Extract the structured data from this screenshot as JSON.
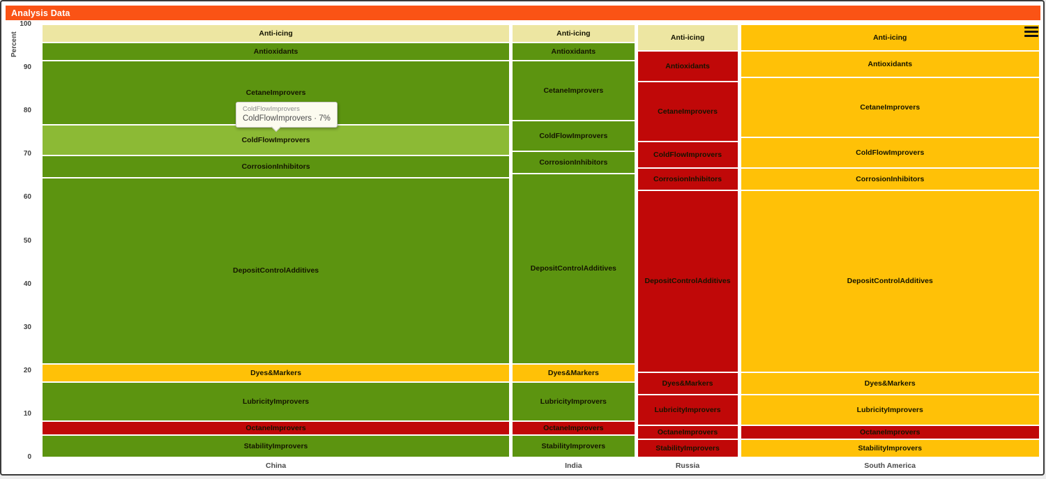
{
  "header": {
    "title": "Analysis Data",
    "background_color": "#FA5315"
  },
  "toolbar": {
    "menu_icon": "hamburger-menu-icon"
  },
  "tooltip": {
    "line1": "ColdFlowImprovers",
    "line2": "ColdFlowImprovers · 7%",
    "hovered_cell": "China / ColdFlowImprovers"
  },
  "chart_data": {
    "type": "mosaic",
    "title": "Analysis Data",
    "xlabel": "",
    "ylabel": "Percent",
    "ylim": [
      0,
      100
    ],
    "y_ticks": [
      0,
      10,
      20,
      30,
      40,
      50,
      60,
      70,
      80,
      90,
      100
    ],
    "grid": false,
    "legend": "none",
    "categories": [
      "China",
      "India",
      "Russia",
      "South America"
    ],
    "column_width_percent": [
      47.2,
      12.4,
      10.2,
      30.2
    ],
    "row_order_top_to_bottom": [
      "Anti-icing",
      "Antioxidants",
      "CetaneImprovers",
      "ColdFlowImprovers",
      "CorrosionInhibitors",
      "DepositControlAdditives",
      "Dyes&Markers",
      "LubricityImprovers",
      "OctaneImprovers",
      "StabilityImprovers"
    ],
    "palette": {
      "khaki": "#EDE6A2",
      "green": "#5C9410",
      "light_green": "#8CBA35",
      "amber": "#FFC107",
      "red": "#C00808"
    },
    "columns": [
      {
        "name": "China",
        "width_percent": 47.2,
        "segments": [
          {
            "label": "Anti-icing",
            "value": 4,
            "color": "khaki"
          },
          {
            "label": "Antioxidants",
            "value": 4,
            "color": "green"
          },
          {
            "label": "CetaneImprovers",
            "value": 15,
            "color": "green"
          },
          {
            "label": "ColdFlowImprovers",
            "value": 7,
            "color": "light_green",
            "highlighted": true
          },
          {
            "label": "CorrosionInhibitors",
            "value": 5,
            "color": "green"
          },
          {
            "label": "DepositControlAdditives",
            "value": 44,
            "color": "green"
          },
          {
            "label": "Dyes&Markers",
            "value": 4,
            "color": "amber"
          },
          {
            "label": "LubricityImprovers",
            "value": 9,
            "color": "green"
          },
          {
            "label": "OctaneImprovers",
            "value": 3,
            "color": "red"
          },
          {
            "label": "StabilityImprovers",
            "value": 5,
            "color": "green"
          }
        ]
      },
      {
        "name": "India",
        "width_percent": 12.4,
        "segments": [
          {
            "label": "Anti-icing",
            "value": 4,
            "color": "khaki"
          },
          {
            "label": "Antioxidants",
            "value": 4,
            "color": "green"
          },
          {
            "label": "CetaneImprovers",
            "value": 14,
            "color": "green"
          },
          {
            "label": "ColdFlowImprovers",
            "value": 7,
            "color": "green"
          },
          {
            "label": "CorrosionInhibitors",
            "value": 5,
            "color": "green"
          },
          {
            "label": "DepositControlAdditives",
            "value": 45,
            "color": "green"
          },
          {
            "label": "Dyes&Markers",
            "value": 4,
            "color": "amber"
          },
          {
            "label": "LubricityImprovers",
            "value": 9,
            "color": "green"
          },
          {
            "label": "OctaneImprovers",
            "value": 3,
            "color": "red"
          },
          {
            "label": "StabilityImprovers",
            "value": 5,
            "color": "green"
          }
        ]
      },
      {
        "name": "Russia",
        "width_percent": 10.2,
        "segments": [
          {
            "label": "Anti-icing",
            "value": 6,
            "color": "khaki"
          },
          {
            "label": "Antioxidants",
            "value": 7,
            "color": "red"
          },
          {
            "label": "CetaneImprovers",
            "value": 14,
            "color": "red"
          },
          {
            "label": "ColdFlowImprovers",
            "value": 6,
            "color": "red"
          },
          {
            "label": "CorrosionInhibitors",
            "value": 5,
            "color": "red"
          },
          {
            "label": "DepositControlAdditives",
            "value": 43,
            "color": "red"
          },
          {
            "label": "Dyes&Markers",
            "value": 5,
            "color": "red"
          },
          {
            "label": "LubricityImprovers",
            "value": 7,
            "color": "red"
          },
          {
            "label": "OctaneImprovers",
            "value": 3,
            "color": "red"
          },
          {
            "label": "StabilityImprovers",
            "value": 4,
            "color": "red"
          }
        ]
      },
      {
        "name": "South America",
        "width_percent": 30.2,
        "segments": [
          {
            "label": "Anti-icing",
            "value": 6,
            "color": "amber"
          },
          {
            "label": "Antioxidants",
            "value": 6,
            "color": "amber"
          },
          {
            "label": "CetaneImprovers",
            "value": 14,
            "color": "amber"
          },
          {
            "label": "ColdFlowImprovers",
            "value": 7,
            "color": "amber"
          },
          {
            "label": "CorrosionInhibitors",
            "value": 5,
            "color": "amber"
          },
          {
            "label": "DepositControlAdditives",
            "value": 43,
            "color": "amber"
          },
          {
            "label": "Dyes&Markers",
            "value": 5,
            "color": "amber"
          },
          {
            "label": "LubricityImprovers",
            "value": 7,
            "color": "amber"
          },
          {
            "label": "OctaneImprovers",
            "value": 3,
            "color": "red"
          },
          {
            "label": "StabilityImprovers",
            "value": 4,
            "color": "amber"
          }
        ]
      }
    ]
  }
}
